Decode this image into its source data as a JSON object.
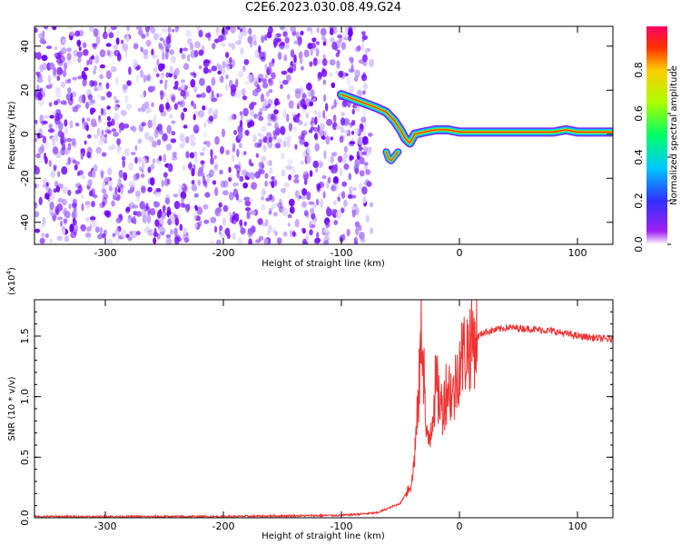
{
  "title": "C2E6.2023.030.08.49.G24",
  "colors": {
    "signal": "#ee3333",
    "speckle": "#6a00ff",
    "axis": "#000000"
  },
  "chart_data": [
    {
      "type": "heatmap",
      "xlabel": "Height of straight line (km)",
      "ylabel": "Frequency (Hz)",
      "xlim": [
        -360,
        130
      ],
      "ylim": [
        -50,
        49
      ],
      "xticks": [
        -300,
        -200,
        -100,
        0,
        100
      ],
      "yticks": [
        -40,
        -20,
        0,
        20,
        40
      ],
      "noise_region_x": [
        -360,
        -82
      ],
      "trace": {
        "x": [
          -100,
          -90,
          -80,
          -70,
          -62,
          -55,
          -50,
          -46,
          -42,
          -38,
          -30,
          -20,
          -10,
          0,
          20,
          50,
          80,
          90,
          100,
          130
        ],
        "y": [
          18,
          16,
          14,
          12,
          10,
          6,
          2,
          -2,
          -4,
          0,
          1,
          2,
          2,
          1,
          1,
          1,
          1,
          2,
          1,
          1
        ]
      },
      "side_branch": {
        "x": [
          -62,
          -60,
          -58,
          -55,
          -52
        ],
        "y": [
          -8,
          -11,
          -12,
          -10,
          -8
        ]
      },
      "colorbar": {
        "label": "Normalized spectral amplitude",
        "ticks": [
          "0.0",
          "0.2",
          "0.4",
          "0.6",
          "0.8"
        ],
        "range": [
          0,
          1
        ]
      }
    },
    {
      "type": "line",
      "xlabel": "Height of straight line (km)",
      "ylabel": "SNR (10 * v/v)",
      "yunit": "(x10",
      "yunit_exp": "4",
      "yunit_close": ")",
      "xlim": [
        -360,
        130
      ],
      "ylim": [
        0,
        1.8
      ],
      "xticks": [
        -300,
        -200,
        -100,
        0,
        100
      ],
      "yticks": [
        "0.0",
        "0.5",
        "1.0",
        "1.5"
      ],
      "ytick_values": [
        0,
        0.5,
        1.0,
        1.5
      ],
      "series": [
        {
          "x": [
            -360,
            -200,
            -100,
            -70,
            -50,
            -40,
            -35,
            -32,
            -30,
            -28,
            -25,
            -20,
            -15,
            -10,
            -5,
            0,
            10,
            20,
            40,
            60,
            80,
            100,
            130
          ],
          "y": [
            0.01,
            0.01,
            0.02,
            0.04,
            0.12,
            0.3,
            0.9,
            1.6,
            1.2,
            0.6,
            0.7,
            1.1,
            0.9,
            1.1,
            1.0,
            1.3,
            1.45,
            1.53,
            1.57,
            1.56,
            1.54,
            1.5,
            1.47
          ]
        }
      ]
    }
  ]
}
